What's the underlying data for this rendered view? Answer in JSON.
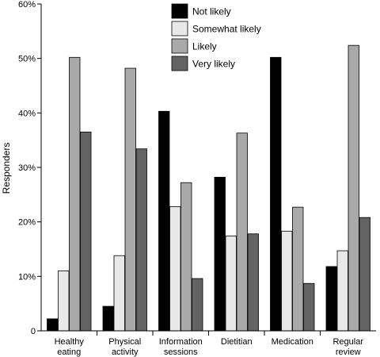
{
  "chart_data": {
    "type": "bar",
    "title": "",
    "xlabel": "",
    "ylabel": "Responders",
    "ylim": [
      0,
      60
    ],
    "yticks": [
      "0",
      "10%",
      "20%",
      "30%",
      "40%",
      "50%",
      "60%"
    ],
    "grid": false,
    "legend_position": "top-center",
    "categories": [
      [
        "Healthy",
        "eating"
      ],
      [
        "Physical",
        "activity"
      ],
      [
        "Information",
        "sessions"
      ],
      [
        "Dietitian"
      ],
      [
        "Medication"
      ],
      [
        "Regular",
        "review"
      ]
    ],
    "series": [
      {
        "name": "Not likely",
        "color": "#000000",
        "values": [
          2.2,
          4.5,
          40.3,
          28.2,
          50.2,
          11.8
        ]
      },
      {
        "name": "Somewhat likely",
        "color": "#e8e8e8",
        "values": [
          11.0,
          13.8,
          22.8,
          17.4,
          18.3,
          14.7
        ]
      },
      {
        "name": "Likely",
        "color": "#a9a9a9",
        "values": [
          50.2,
          48.2,
          27.2,
          36.3,
          22.7,
          52.4
        ]
      },
      {
        "name": "Very likely",
        "color": "#636363",
        "values": [
          36.5,
          33.4,
          9.6,
          17.8,
          8.7,
          20.8
        ]
      }
    ]
  }
}
